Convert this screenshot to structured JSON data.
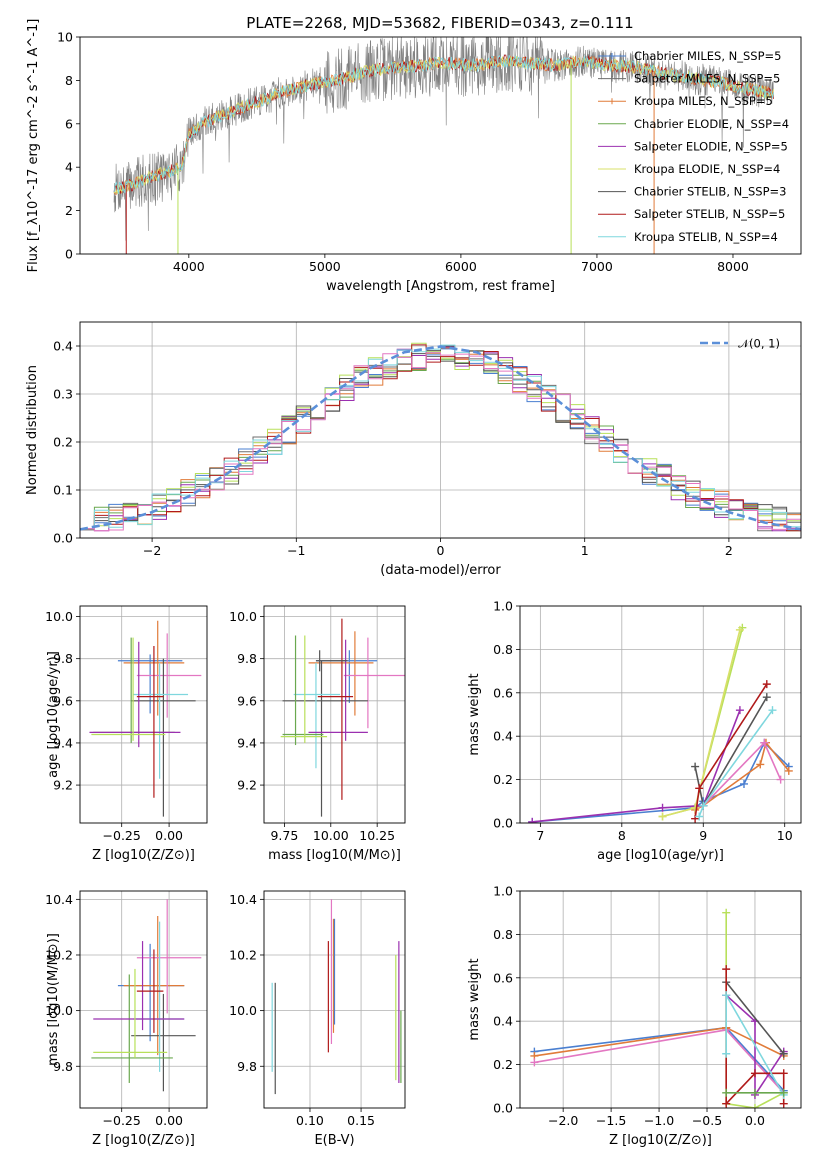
{
  "title": "PLATE=2268, MJD=53682, FIBERID=0343, z=0.111",
  "colors": {
    "chabrier_miles": "#4a7fd0",
    "salpeter_miles": "#6e6e6e",
    "kroupa_miles": "#e07b39",
    "chabrier_elodie": "#6aa84f",
    "salpeter_elodie": "#9b30b0",
    "kroupa_elodie": "#d8e06a",
    "chabrier_stelib": "#555555",
    "salpeter_stelib": "#b01a1a",
    "kroupa_stelib": "#7fd7de",
    "pink": "#e377c2",
    "lime": "#b8e05a",
    "gaussian": "#5b8fd8",
    "grid": "#b0b0b0"
  },
  "chart_data": [
    {
      "id": "spectrum",
      "type": "line",
      "xlabel": "wavelength [Angstrom, rest frame]",
      "ylabel": "Flux [f_λ10^-17 erg cm^-2 s^-1 A^-1]",
      "xlim": [
        3200,
        8500
      ],
      "ylim": [
        0,
        10
      ],
      "xticks": [
        4000,
        5000,
        6000,
        7000,
        8000
      ],
      "yticks": [
        0,
        2,
        4,
        6,
        8,
        10
      ],
      "grid": false,
      "legend_position": "right",
      "legend": [
        "Chabrier MILES, N_SSP=5",
        "Salpeter MILES, N_SSP=5",
        "Kroupa MILES, N_SSP=5",
        "Chabrier ELODIE, N_SSP=4",
        "Salpeter ELODIE, N_SSP=5",
        "Kroupa ELODIE, N_SSP=4",
        "Chabrier STELIB, N_SSP=3",
        "Salpeter STELIB, N_SSP=5",
        "Kroupa STELIB, N_SSP=4"
      ],
      "model_continuum": {
        "x": [
          3450,
          3600,
          3700,
          3800,
          3900,
          3950,
          4000,
          4100,
          4200,
          4300,
          4400,
          4500,
          4700,
          4900,
          5100,
          5300,
          5500,
          5700,
          5900,
          6100,
          6300,
          6500,
          6700,
          6900,
          7100,
          7300,
          7500,
          7700,
          7900,
          8100,
          8300
        ],
        "y": [
          3.0,
          3.2,
          3.5,
          3.7,
          3.9,
          4.1,
          5.5,
          6.0,
          6.3,
          6.5,
          6.8,
          7.0,
          7.5,
          7.8,
          8.0,
          8.4,
          8.6,
          8.7,
          8.8,
          8.7,
          8.9,
          8.8,
          8.7,
          8.9,
          8.7,
          8.6,
          8.3,
          8.1,
          7.9,
          7.6,
          7.4
        ]
      }
    },
    {
      "id": "residuals",
      "type": "line",
      "xlabel": "(data-model)/error",
      "ylabel": "Normed distribution",
      "xlim": [
        -2.5,
        2.5
      ],
      "ylim": [
        0,
        0.45
      ],
      "xticks": [
        -2,
        -1,
        0,
        1,
        2
      ],
      "xticklabels": [
        "−2",
        "−1",
        "0",
        "1",
        "2"
      ],
      "yticks": [
        0.0,
        0.1,
        0.2,
        0.3,
        0.4
      ],
      "grid": true,
      "legend": [
        "𝒩(0, 1)"
      ],
      "legend_position": "top-right",
      "bin_edges": [
        -2.5,
        -2.4,
        -2.3,
        -2.2,
        -2.1,
        -2.0,
        -1.9,
        -1.8,
        -1.7,
        -1.6,
        -1.5,
        -1.4,
        -1.3,
        -1.2,
        -1.1,
        -1.0,
        -0.9,
        -0.8,
        -0.7,
        -0.6,
        -0.5,
        -0.4,
        -0.3,
        -0.2,
        -0.1,
        0.0,
        0.1,
        0.2,
        0.3,
        0.4,
        0.5,
        0.6,
        0.7,
        0.8,
        0.9,
        1.0,
        1.1,
        1.2,
        1.3,
        1.4,
        1.5,
        1.6,
        1.7,
        1.8,
        1.9,
        2.0,
        2.1,
        2.2,
        2.3,
        2.4,
        2.5
      ],
      "gaussian_x": [
        -2.5,
        -2.25,
        -2.0,
        -1.75,
        -1.5,
        -1.25,
        -1.0,
        -0.75,
        -0.5,
        -0.25,
        0.0,
        0.25,
        0.5,
        0.75,
        1.0,
        1.25,
        1.5,
        1.75,
        2.0,
        2.25,
        2.5
      ],
      "gaussian_y": [
        0.018,
        0.032,
        0.054,
        0.086,
        0.13,
        0.183,
        0.242,
        0.301,
        0.352,
        0.387,
        0.399,
        0.387,
        0.352,
        0.301,
        0.242,
        0.183,
        0.13,
        0.086,
        0.054,
        0.032,
        0.018
      ]
    },
    {
      "id": "age_vs_Z",
      "type": "scatter",
      "xlabel": "Z [log10(Z/Z⊙)]",
      "ylabel": "age  [log10(age/yr)]",
      "xlim": [
        -0.47,
        0.2
      ],
      "ylim": [
        9.02,
        10.05
      ],
      "xticks": [
        -0.25,
        0.0
      ],
      "xticklabels": [
        "−0.25",
        "0.00"
      ],
      "yticks": [
        9.2,
        9.4,
        9.6,
        9.8,
        10.0
      ],
      "grid": true
    },
    {
      "id": "age_vs_mass",
      "type": "scatter",
      "xlabel": "mass [log10(M/M⊙)]",
      "ylabel": "",
      "xlim": [
        9.64,
        10.4
      ],
      "ylim": [
        9.02,
        10.05
      ],
      "xticks": [
        9.75,
        10.0,
        10.25
      ],
      "xticklabels": [
        "9.75",
        "10.00",
        "10.25"
      ],
      "yticks": [
        9.2,
        9.4,
        9.6,
        9.8,
        10.0
      ],
      "grid": true
    },
    {
      "id": "weight_vs_age",
      "type": "line",
      "xlabel": "age  [log10(age/yr)]",
      "ylabel": "mass weight",
      "xlim": [
        6.75,
        10.2
      ],
      "ylim": [
        0,
        1
      ],
      "xticks": [
        7,
        8,
        9,
        10
      ],
      "yticks": [
        0.0,
        0.2,
        0.4,
        0.6,
        0.8,
        1.0
      ],
      "grid": true
    },
    {
      "id": "mass_vs_Z",
      "type": "scatter",
      "xlabel": "Z [log10(Z/Z⊙)]",
      "ylabel": "mass [log10(M/M⊙)]",
      "xlim": [
        -0.47,
        0.2
      ],
      "ylim": [
        9.65,
        10.43
      ],
      "xticks": [
        -0.25,
        0.0
      ],
      "xticklabels": [
        "−0.25",
        "0.00"
      ],
      "yticks": [
        9.8,
        10.0,
        10.2,
        10.4
      ],
      "grid": true
    },
    {
      "id": "mass_vs_EBV",
      "type": "scatter",
      "xlabel": "E(B-V)",
      "ylabel": "",
      "xlim": [
        0.055,
        0.193
      ],
      "ylim": [
        9.65,
        10.43
      ],
      "xticks": [
        0.1,
        0.15
      ],
      "xticklabels": [
        "0.10",
        "0.15"
      ],
      "yticks": [
        9.8,
        10.0,
        10.2,
        10.4
      ],
      "grid": true
    },
    {
      "id": "weight_vs_Z",
      "type": "line",
      "xlabel": "Z [log10(Z/Z⊙)]",
      "ylabel": "mass weight",
      "xlim": [
        -2.45,
        0.48
      ],
      "ylim": [
        0,
        1
      ],
      "xticks": [
        -2.0,
        -1.5,
        -1.0,
        -0.5,
        0.0
      ],
      "xticklabels": [
        "−2.0",
        "−1.5",
        "−1.0",
        "−0.5",
        "0.0"
      ],
      "yticks": [
        0.0,
        0.2,
        0.4,
        0.6,
        0.8,
        1.0
      ],
      "grid": true
    }
  ]
}
